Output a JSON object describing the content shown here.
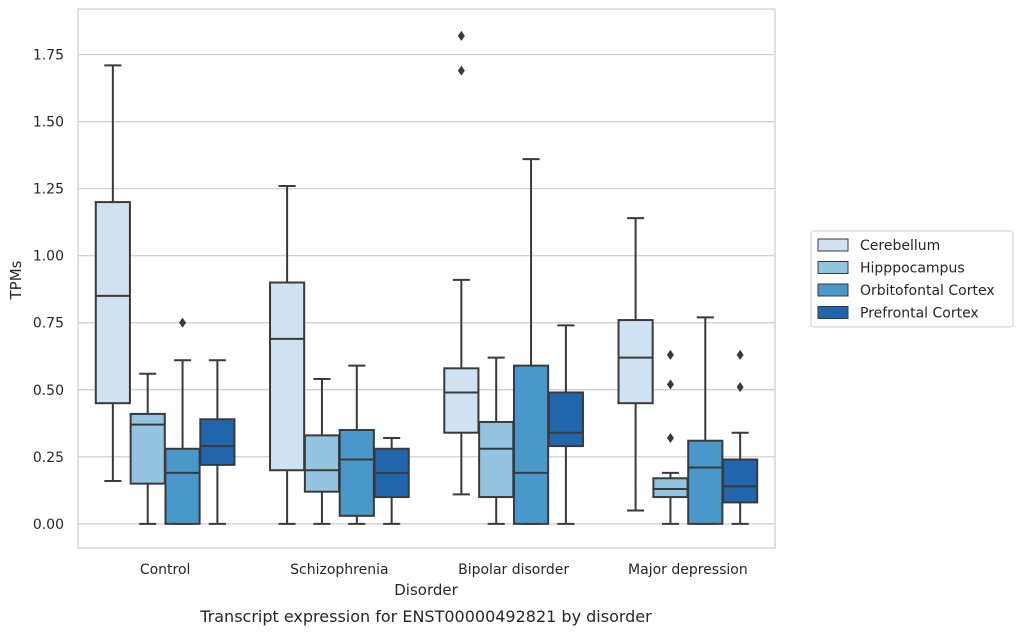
{
  "chart_data": {
    "type": "box",
    "caption": "Transcript expression for ENST00000492821 by disorder",
    "xlabel": "Disorder",
    "ylabel": "TPMs",
    "ylim": [
      -0.09,
      1.92
    ],
    "yticks": [
      "0.00",
      "0.25",
      "0.50",
      "0.75",
      "1.00",
      "1.25",
      "1.50",
      "1.75"
    ],
    "grid": true,
    "legend_position": "right",
    "categories": [
      "Control",
      "Schizophrenia",
      "Bipolar disorder",
      "Major depression"
    ],
    "series": [
      {
        "name": "Cerebellum",
        "color": "#d0e1f2",
        "boxes": [
          {
            "whislo": 0.16,
            "q1": 0.45,
            "med": 0.85,
            "q3": 1.2,
            "whishi": 1.71,
            "fliers": []
          },
          {
            "whislo": 0.0,
            "q1": 0.2,
            "med": 0.69,
            "q3": 0.9,
            "whishi": 1.26,
            "fliers": []
          },
          {
            "whislo": 0.11,
            "q1": 0.34,
            "med": 0.49,
            "q3": 0.58,
            "whishi": 0.91,
            "fliers": [
              1.69,
              1.82
            ]
          },
          {
            "whislo": 0.05,
            "q1": 0.45,
            "med": 0.62,
            "q3": 0.76,
            "whishi": 1.14,
            "fliers": []
          }
        ]
      },
      {
        "name": "Hipppocampus",
        "color": "#94c4df",
        "boxes": [
          {
            "whislo": 0.0,
            "q1": 0.15,
            "med": 0.37,
            "q3": 0.41,
            "whishi": 0.56,
            "fliers": []
          },
          {
            "whislo": 0.0,
            "q1": 0.12,
            "med": 0.2,
            "q3": 0.33,
            "whishi": 0.54,
            "fliers": []
          },
          {
            "whislo": 0.0,
            "q1": 0.1,
            "med": 0.28,
            "q3": 0.38,
            "whishi": 0.62,
            "fliers": []
          },
          {
            "whislo": 0.0,
            "q1": 0.1,
            "med": 0.13,
            "q3": 0.17,
            "whishi": 0.19,
            "fliers": [
              0.32,
              0.52,
              0.63
            ]
          }
        ]
      },
      {
        "name": "Orbitofontal Cortex",
        "color": "#4a98c9",
        "boxes": [
          {
            "whislo": 0.0,
            "q1": 0.0,
            "med": 0.19,
            "q3": 0.28,
            "whishi": 0.61,
            "fliers": [
              0.75
            ]
          },
          {
            "whislo": 0.0,
            "q1": 0.03,
            "med": 0.24,
            "q3": 0.35,
            "whishi": 0.59,
            "fliers": []
          },
          {
            "whislo": 0.0,
            "q1": 0.0,
            "med": 0.19,
            "q3": 0.59,
            "whishi": 1.36,
            "fliers": []
          },
          {
            "whislo": 0.0,
            "q1": 0.0,
            "med": 0.21,
            "q3": 0.31,
            "whishi": 0.77,
            "fliers": []
          }
        ]
      },
      {
        "name": "Prefrontal Cortex",
        "color": "#2166ac",
        "boxes": [
          {
            "whislo": 0.0,
            "q1": 0.22,
            "med": 0.29,
            "q3": 0.39,
            "whishi": 0.61,
            "fliers": []
          },
          {
            "whislo": 0.0,
            "q1": 0.1,
            "med": 0.19,
            "q3": 0.28,
            "whishi": 0.32,
            "fliers": []
          },
          {
            "whislo": 0.0,
            "q1": 0.29,
            "med": 0.34,
            "q3": 0.49,
            "whishi": 0.74,
            "fliers": []
          },
          {
            "whislo": 0.0,
            "q1": 0.08,
            "med": 0.14,
            "q3": 0.24,
            "whishi": 0.34,
            "fliers": [
              0.51,
              0.63
            ]
          }
        ]
      }
    ]
  }
}
